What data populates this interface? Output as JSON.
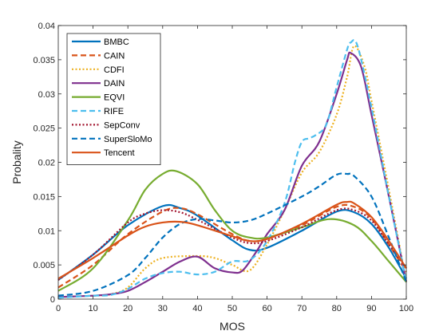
{
  "chart_data": {
    "type": "line",
    "xlabel": "MOS",
    "ylabel": "Probality",
    "xlim": [
      0,
      100
    ],
    "ylim": [
      0,
      0.04
    ],
    "x_ticks": [
      0,
      10,
      20,
      30,
      40,
      50,
      60,
      70,
      80,
      90,
      100
    ],
    "x_tick_labels": [
      "0",
      "10",
      "20",
      "30",
      "40",
      "50",
      "60",
      "70",
      "80",
      "90",
      "100"
    ],
    "y_ticks": [
      0,
      0.005,
      0.01,
      0.015,
      0.02,
      0.025,
      0.03,
      0.035,
      0.04
    ],
    "y_tick_labels": [
      "0",
      "0.005",
      "0.01",
      "0.015",
      "0.02",
      "0.025",
      "0.03",
      "0.035",
      "0.04"
    ],
    "grid": false,
    "legend_position": "top-left",
    "series": [
      {
        "name": "BMBC",
        "color": "#0072BD",
        "dash": "solid",
        "points": [
          [
            0,
            0.0028
          ],
          [
            10,
            0.0065
          ],
          [
            20,
            0.0108
          ],
          [
            30,
            0.0136
          ],
          [
            35,
            0.0133
          ],
          [
            40,
            0.0122
          ],
          [
            50,
            0.0086
          ],
          [
            55,
            0.0072
          ],
          [
            60,
            0.0075
          ],
          [
            70,
            0.01
          ],
          [
            80,
            0.0128
          ],
          [
            85,
            0.0127
          ],
          [
            90,
            0.011
          ],
          [
            95,
            0.0075
          ],
          [
            100,
            0.003
          ]
        ]
      },
      {
        "name": "CAIN",
        "color": "#D95319",
        "dash": "dashed",
        "points": [
          [
            0,
            0.0017
          ],
          [
            10,
            0.005
          ],
          [
            20,
            0.0095
          ],
          [
            30,
            0.0128
          ],
          [
            35,
            0.0133
          ],
          [
            40,
            0.0124
          ],
          [
            50,
            0.0095
          ],
          [
            55,
            0.0085
          ],
          [
            60,
            0.0088
          ],
          [
            70,
            0.0108
          ],
          [
            80,
            0.0135
          ],
          [
            85,
            0.0135
          ],
          [
            90,
            0.0118
          ],
          [
            95,
            0.008
          ],
          [
            100,
            0.004
          ]
        ]
      },
      {
        "name": "CDFI",
        "color": "#EDB120",
        "dash": "dotted",
        "points": [
          [
            0,
            0.0003
          ],
          [
            10,
            0.0005
          ],
          [
            15,
            0.0007
          ],
          [
            20,
            0.0017
          ],
          [
            25,
            0.0045
          ],
          [
            30,
            0.006
          ],
          [
            40,
            0.0063
          ],
          [
            45,
            0.006
          ],
          [
            50,
            0.005
          ],
          [
            55,
            0.0042
          ],
          [
            60,
            0.008
          ],
          [
            65,
            0.013
          ],
          [
            70,
            0.0185
          ],
          [
            75,
            0.0215
          ],
          [
            80,
            0.027
          ],
          [
            83,
            0.0325
          ],
          [
            85,
            0.037
          ],
          [
            88,
            0.034
          ],
          [
            90,
            0.029
          ],
          [
            95,
            0.016
          ],
          [
            100,
            0.0025
          ]
        ]
      },
      {
        "name": "DAIN",
        "color": "#7E2F8E",
        "dash": "solid",
        "points": [
          [
            0,
            0.0003
          ],
          [
            10,
            0.0005
          ],
          [
            15,
            0.0007
          ],
          [
            20,
            0.0012
          ],
          [
            25,
            0.0025
          ],
          [
            30,
            0.004
          ],
          [
            35,
            0.0055
          ],
          [
            40,
            0.0062
          ],
          [
            45,
            0.0045
          ],
          [
            50,
            0.0039
          ],
          [
            53,
            0.0042
          ],
          [
            57,
            0.007
          ],
          [
            60,
            0.0095
          ],
          [
            65,
            0.013
          ],
          [
            70,
            0.0195
          ],
          [
            75,
            0.023
          ],
          [
            80,
            0.03
          ],
          [
            83,
            0.035
          ],
          [
            84,
            0.036
          ],
          [
            87,
            0.034
          ],
          [
            90,
            0.027
          ],
          [
            95,
            0.015
          ],
          [
            100,
            0.0025
          ]
        ]
      },
      {
        "name": "EQVI",
        "color": "#77AC30",
        "dash": "solid",
        "points": [
          [
            0,
            0.0012
          ],
          [
            10,
            0.0045
          ],
          [
            20,
            0.0115
          ],
          [
            25,
            0.016
          ],
          [
            30,
            0.0183
          ],
          [
            34,
            0.0187
          ],
          [
            40,
            0.0168
          ],
          [
            45,
            0.013
          ],
          [
            50,
            0.01
          ],
          [
            55,
            0.009
          ],
          [
            60,
            0.009
          ],
          [
            70,
            0.0105
          ],
          [
            78,
            0.0117
          ],
          [
            85,
            0.0108
          ],
          [
            90,
            0.0085
          ],
          [
            95,
            0.0055
          ],
          [
            100,
            0.0025
          ]
        ]
      },
      {
        "name": "RIFE",
        "color": "#4DBEEE",
        "dash": "dashed",
        "points": [
          [
            0,
            0.0002
          ],
          [
            10,
            0.0005
          ],
          [
            15,
            0.0006
          ],
          [
            20,
            0.0015
          ],
          [
            25,
            0.003
          ],
          [
            30,
            0.0038
          ],
          [
            35,
            0.004
          ],
          [
            40,
            0.0036
          ],
          [
            45,
            0.004
          ],
          [
            50,
            0.0055
          ],
          [
            55,
            0.0057
          ],
          [
            60,
            0.0085
          ],
          [
            65,
            0.014
          ],
          [
            68,
            0.02
          ],
          [
            70,
            0.023
          ],
          [
            72,
            0.0235
          ],
          [
            74,
            0.024
          ],
          [
            77,
            0.0255
          ],
          [
            80,
            0.031
          ],
          [
            83,
            0.0365
          ],
          [
            84,
            0.0375
          ],
          [
            86,
            0.037
          ],
          [
            90,
            0.028
          ],
          [
            95,
            0.015
          ],
          [
            100,
            0.0025
          ]
        ]
      },
      {
        "name": "SepConv",
        "color": "#A2142F",
        "dash": "dotted",
        "points": [
          [
            0,
            0.0028
          ],
          [
            10,
            0.0065
          ],
          [
            20,
            0.0112
          ],
          [
            25,
            0.0125
          ],
          [
            30,
            0.013
          ],
          [
            35,
            0.0127
          ],
          [
            40,
            0.0116
          ],
          [
            50,
            0.009
          ],
          [
            55,
            0.0082
          ],
          [
            60,
            0.0085
          ],
          [
            70,
            0.0105
          ],
          [
            80,
            0.013
          ],
          [
            85,
            0.013
          ],
          [
            90,
            0.0115
          ],
          [
            95,
            0.008
          ],
          [
            100,
            0.0045
          ]
        ]
      },
      {
        "name": "SuperSloMo",
        "color": "#0072BD",
        "dash": "dashed",
        "points": [
          [
            0,
            0.0005
          ],
          [
            10,
            0.0012
          ],
          [
            20,
            0.0035
          ],
          [
            25,
            0.006
          ],
          [
            30,
            0.009
          ],
          [
            35,
            0.011
          ],
          [
            40,
            0.0117
          ],
          [
            45,
            0.0115
          ],
          [
            50,
            0.0112
          ],
          [
            55,
            0.0115
          ],
          [
            60,
            0.0125
          ],
          [
            70,
            0.015
          ],
          [
            75,
            0.0165
          ],
          [
            80,
            0.0182
          ],
          [
            83,
            0.0183
          ],
          [
            85,
            0.018
          ],
          [
            90,
            0.015
          ],
          [
            95,
            0.009
          ],
          [
            100,
            0.0025
          ]
        ]
      },
      {
        "name": "Tencent",
        "color": "#D95319",
        "dash": "solid",
        "points": [
          [
            0,
            0.003
          ],
          [
            10,
            0.006
          ],
          [
            20,
            0.0093
          ],
          [
            25,
            0.0106
          ],
          [
            30,
            0.0112
          ],
          [
            35,
            0.0113
          ],
          [
            40,
            0.0108
          ],
          [
            50,
            0.0092
          ],
          [
            55,
            0.0085
          ],
          [
            60,
            0.0088
          ],
          [
            70,
            0.011
          ],
          [
            80,
            0.0138
          ],
          [
            83,
            0.0142
          ],
          [
            85,
            0.014
          ],
          [
            90,
            0.012
          ],
          [
            95,
            0.0085
          ],
          [
            100,
            0.0045
          ]
        ]
      }
    ]
  }
}
